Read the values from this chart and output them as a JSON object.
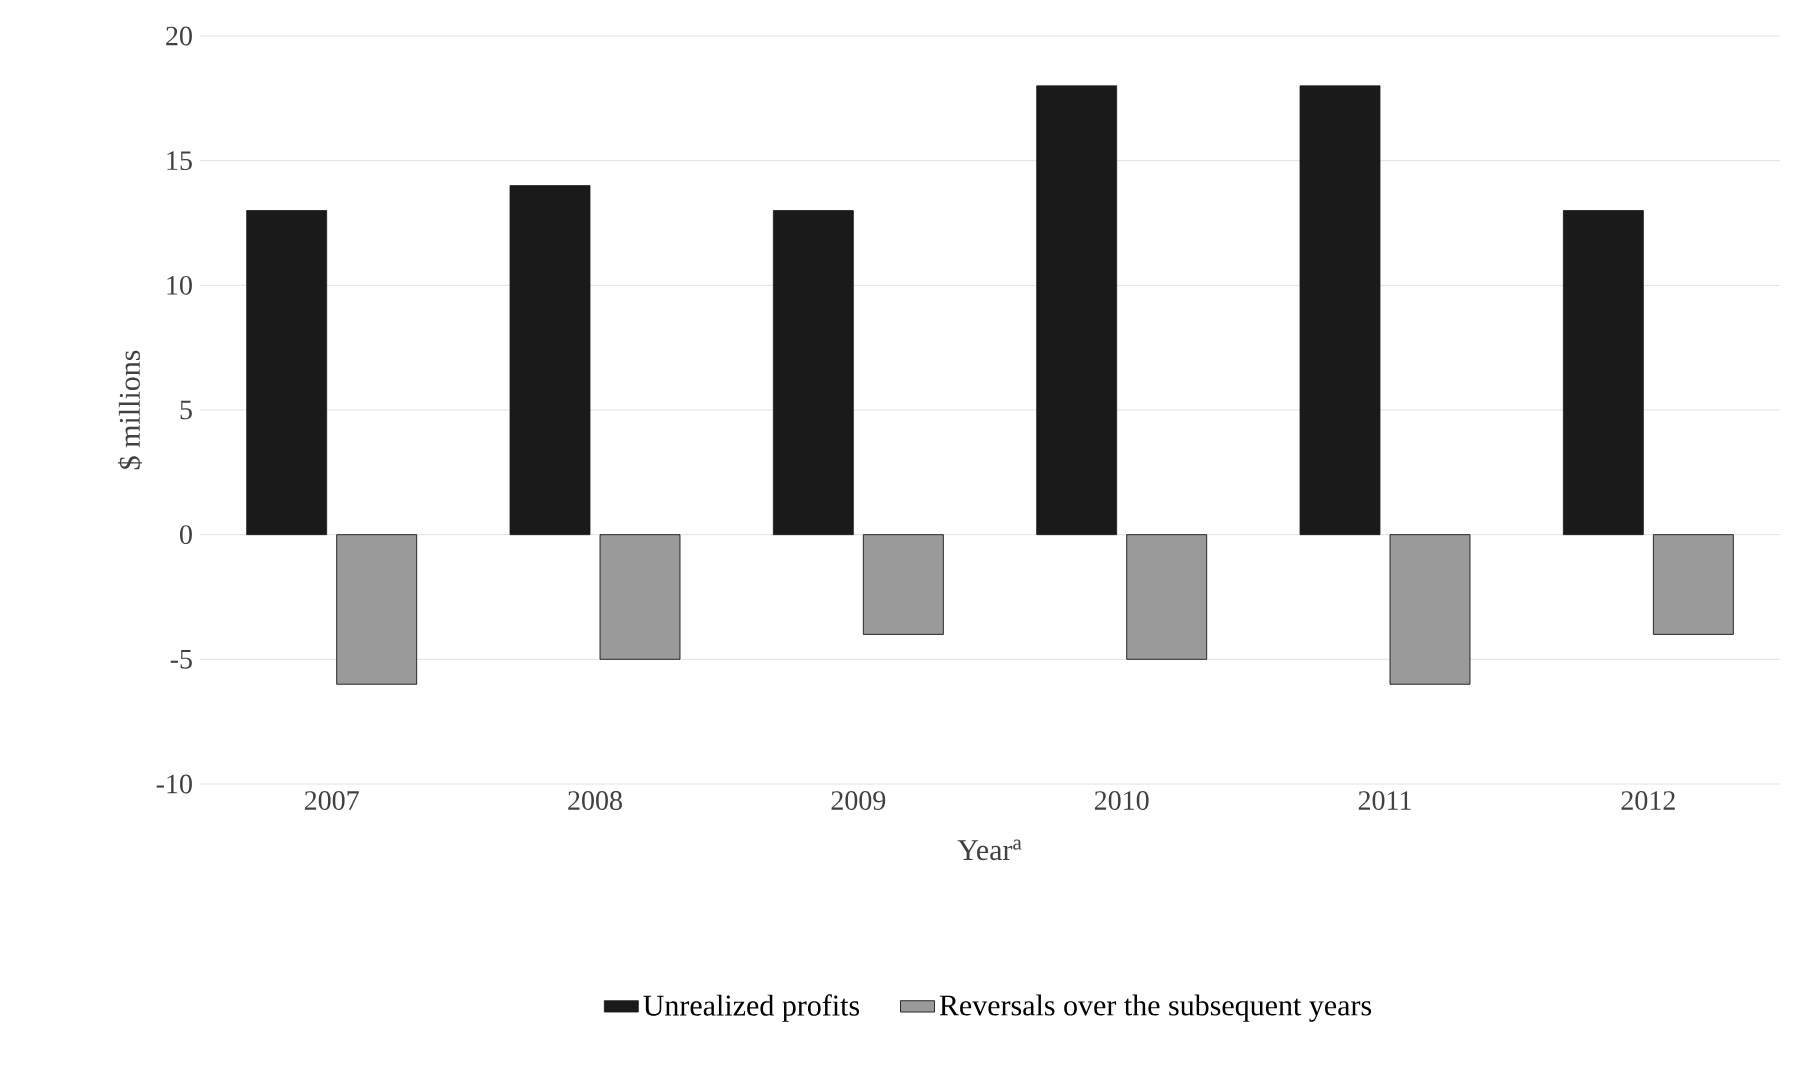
{
  "chart_data": {
    "type": "bar",
    "xlabel": "Year$^{a}$",
    "ylabel": "$ millions",
    "categories": [
      "2007",
      "2008",
      "2009",
      "2010",
      "2011",
      "2012"
    ],
    "series": [
      {
        "name": "Unrealized profits",
        "color": "#1a1a1a",
        "values": [
          13,
          14,
          13,
          18,
          18,
          13
        ]
      },
      {
        "name": "Reversals over the subsequent years",
        "color": "#9a9a9a",
        "values": [
          -6,
          -5,
          -4,
          -5,
          -6,
          -4
        ]
      }
    ],
    "ylim": [
      -10,
      20
    ],
    "yticks": [
      -10,
      -5,
      0,
      5,
      10,
      15,
      20
    ],
    "grid": "y",
    "legend": "bottom"
  }
}
